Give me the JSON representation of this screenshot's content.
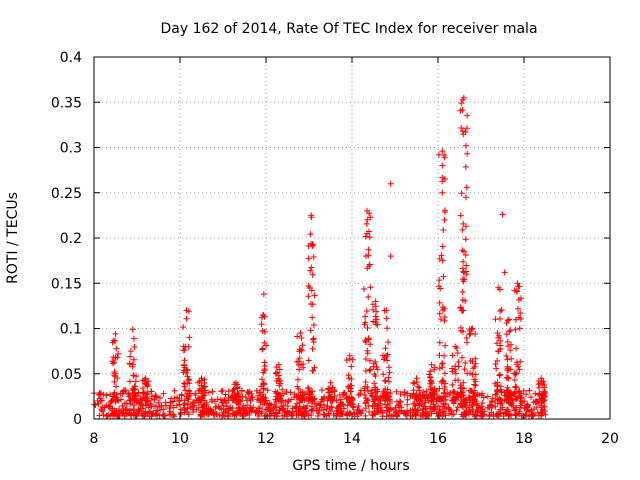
{
  "chart_data": {
    "type": "scatter",
    "title": "Day 162 of 2014, Rate Of TEC Index for receiver mala",
    "xlabel": "GPS time / hours",
    "ylabel": "ROTI / TECUs",
    "xlim": [
      8,
      20
    ],
    "ylim": [
      0,
      0.4
    ],
    "xticks": [
      "8",
      "10",
      "12",
      "14",
      "16",
      "18",
      "20"
    ],
    "xtick_values": [
      8,
      10,
      12,
      14,
      16,
      18,
      20
    ],
    "yticks": [
      "0",
      "0.05",
      "0.1",
      "0.15",
      "0.2",
      "0.25",
      "0.3",
      "0.35",
      "0.4"
    ],
    "ytick_values": [
      0,
      0.05,
      0.1,
      0.15,
      0.2,
      0.25,
      0.3,
      0.35,
      0.4
    ],
    "grid": true,
    "marker": "+",
    "marker_color": "#ff0000",
    "baseline": {
      "x_start": 8.0,
      "x_end": 18.5,
      "y_min": 0.003,
      "y_max": 0.032
    },
    "bursts": [
      {
        "x": 8.5,
        "peak": 0.094
      },
      {
        "x": 8.9,
        "peak": 0.099
      },
      {
        "x": 9.2,
        "peak": 0.045
      },
      {
        "x": 10.15,
        "peak": 0.12
      },
      {
        "x": 10.5,
        "peak": 0.045
      },
      {
        "x": 11.3,
        "peak": 0.04
      },
      {
        "x": 11.95,
        "peak": 0.138
      },
      {
        "x": 12.3,
        "peak": 0.06
      },
      {
        "x": 12.8,
        "peak": 0.095
      },
      {
        "x": 13.05,
        "peak": 0.225
      },
      {
        "x": 13.5,
        "peak": 0.04
      },
      {
        "x": 13.95,
        "peak": 0.07
      },
      {
        "x": 14.35,
        "peak": 0.23
      },
      {
        "x": 14.55,
        "peak": 0.13
      },
      {
        "x": 14.8,
        "peak": 0.12
      },
      {
        "x": 15.5,
        "peak": 0.045
      },
      {
        "x": 15.85,
        "peak": 0.06
      },
      {
        "x": 16.1,
        "peak": 0.296
      },
      {
        "x": 16.4,
        "peak": 0.08
      },
      {
        "x": 16.6,
        "peak": 0.355
      },
      {
        "x": 16.8,
        "peak": 0.1
      },
      {
        "x": 17.4,
        "peak": 0.145
      },
      {
        "x": 17.65,
        "peak": 0.11
      },
      {
        "x": 17.85,
        "peak": 0.15
      },
      {
        "x": 18.4,
        "peak": 0.045
      }
    ],
    "isolated_points": [
      {
        "x": 14.9,
        "y": 0.26
      },
      {
        "x": 14.9,
        "y": 0.18
      },
      {
        "x": 16.65,
        "y": 0.302
      },
      {
        "x": 16.65,
        "y": 0.245
      },
      {
        "x": 16.65,
        "y": 0.213
      },
      {
        "x": 16.65,
        "y": 0.163
      },
      {
        "x": 17.5,
        "y": 0.226
      },
      {
        "x": 17.55,
        "y": 0.162
      },
      {
        "x": 16.1,
        "y": 0.28
      },
      {
        "x": 16.1,
        "y": 0.25
      },
      {
        "x": 16.15,
        "y": 0.22
      }
    ]
  }
}
